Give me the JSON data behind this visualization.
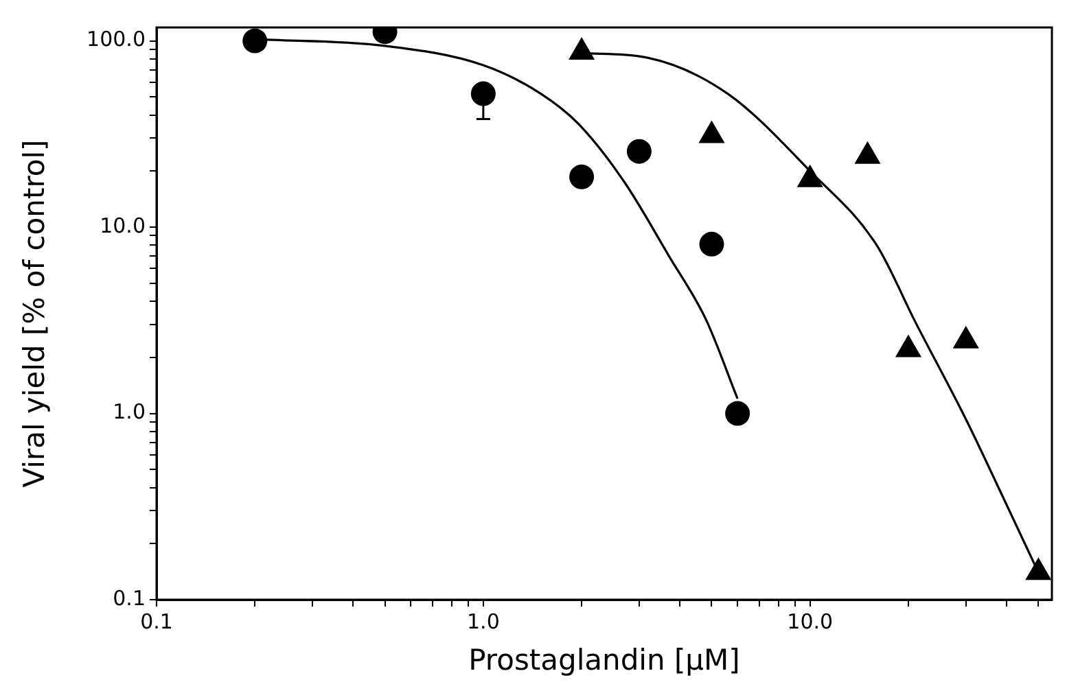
{
  "chart_data": {
    "type": "scatter",
    "xlabel": "Prostaglandin [μM]",
    "ylabel": "Viral yield [% of control]",
    "log": "xy",
    "grid": false,
    "legend": false,
    "xlim": [
      0.1,
      55
    ],
    "ylim": [
      0.1,
      118
    ],
    "xticks": [
      {
        "value": 0.1,
        "label": "0.1"
      },
      {
        "value": 0.2,
        "label": null
      },
      {
        "value": 0.3,
        "label": null
      },
      {
        "value": 0.4,
        "label": null
      },
      {
        "value": 0.5,
        "label": null
      },
      {
        "value": 0.6,
        "label": null
      },
      {
        "value": 0.7,
        "label": null
      },
      {
        "value": 0.8,
        "label": null
      },
      {
        "value": 0.9,
        "label": null
      },
      {
        "value": 1,
        "label": "1.0"
      },
      {
        "value": 2,
        "label": null
      },
      {
        "value": 3,
        "label": null
      },
      {
        "value": 4,
        "label": null
      },
      {
        "value": 5,
        "label": null
      },
      {
        "value": 6,
        "label": null
      },
      {
        "value": 7,
        "label": null
      },
      {
        "value": 8,
        "label": null
      },
      {
        "value": 9,
        "label": null
      },
      {
        "value": 10,
        "label": "10.0"
      },
      {
        "value": 20,
        "label": null
      },
      {
        "value": 30,
        "label": null
      },
      {
        "value": 40,
        "label": null
      },
      {
        "value": 50,
        "label": null
      }
    ],
    "yticks": [
      {
        "value": 0.1,
        "label": "0.1"
      },
      {
        "value": 0.2,
        "label": null
      },
      {
        "value": 0.3,
        "label": null
      },
      {
        "value": 0.4,
        "label": null
      },
      {
        "value": 0.5,
        "label": null
      },
      {
        "value": 0.6,
        "label": null
      },
      {
        "value": 0.7,
        "label": null
      },
      {
        "value": 0.8,
        "label": null
      },
      {
        "value": 0.9,
        "label": null
      },
      {
        "value": 1,
        "label": "1.0"
      },
      {
        "value": 2,
        "label": null
      },
      {
        "value": 3,
        "label": null
      },
      {
        "value": 4,
        "label": null
      },
      {
        "value": 5,
        "label": null
      },
      {
        "value": 6,
        "label": null
      },
      {
        "value": 7,
        "label": null
      },
      {
        "value": 8,
        "label": null
      },
      {
        "value": 9,
        "label": null
      },
      {
        "value": 10,
        "label": "10.0"
      },
      {
        "value": 20,
        "label": null
      },
      {
        "value": 30,
        "label": null
      },
      {
        "value": 40,
        "label": null
      },
      {
        "value": 50,
        "label": null
      },
      {
        "value": 60,
        "label": null
      },
      {
        "value": 70,
        "label": null
      },
      {
        "value": 80,
        "label": null
      },
      {
        "value": 90,
        "label": null
      },
      {
        "value": 100,
        "label": "100.0"
      }
    ],
    "series": [
      {
        "color": "#000000",
        "marker": "circle",
        "x": [
          0.2,
          0.5,
          1,
          2,
          3,
          5,
          6
        ],
        "values": [
          100,
          112,
          52,
          18.6,
          25.5,
          8.1,
          1.0
        ],
        "errors": [
          null,
          null,
          [
            38,
            52
          ],
          null,
          null,
          null,
          null
        ]
      },
      {
        "color": "#000000",
        "marker": "triangle",
        "x": [
          2,
          5,
          10,
          15,
          20,
          30,
          50
        ],
        "values": [
          87,
          31,
          18,
          24,
          2.2,
          2.45,
          0.14
        ]
      },
      {
        "type": "line",
        "color": "#000000",
        "marker": "none",
        "x": [
          0.2,
          0.5,
          1,
          1.5,
          1.95,
          2.7,
          3.7,
          4.8,
          6
        ],
        "values": [
          102,
          94,
          74,
          52,
          36,
          17.5,
          7,
          3.2,
          1.2
        ]
      },
      {
        "type": "line",
        "color": "#000000",
        "marker": "none",
        "x": [
          2,
          3.2,
          5.6,
          10,
          16,
          21,
          30,
          38,
          50
        ],
        "values": [
          86,
          81,
          52,
          20,
          8,
          3.1,
          0.93,
          0.39,
          0.14
        ]
      }
    ]
  }
}
